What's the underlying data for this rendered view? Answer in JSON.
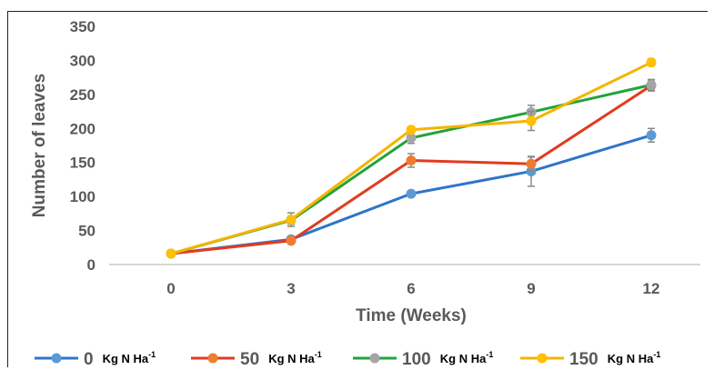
{
  "chart_data": {
    "type": "line",
    "xlabel": "Time (Weeks)",
    "ylabel": "Number of leaves",
    "x": [
      0,
      3,
      6,
      9,
      12
    ],
    "ylim": [
      0,
      350
    ],
    "yticks": [
      0,
      50,
      100,
      150,
      200,
      250,
      300,
      350
    ],
    "grid": false,
    "legend_position": "bottom",
    "series": [
      {
        "name": "0",
        "legend_unit": "Kg N Ha",
        "legend_exp": "-1",
        "color": "#2E75C9",
        "values": [
          16,
          37,
          104,
          137,
          190
        ],
        "errors": [
          0,
          0,
          0,
          22,
          10
        ]
      },
      {
        "name": "50",
        "legend_unit": "Kg N Ha",
        "legend_exp": "-1",
        "color": "#E23B1F",
        "values": [
          16,
          35,
          153,
          148,
          263
        ],
        "errors": [
          0,
          0,
          10,
          10,
          8
        ]
      },
      {
        "name": "100",
        "legend_unit": "Kg N Ha",
        "legend_exp": "-1",
        "color": "#22A33A",
        "values": [
          16,
          65,
          186,
          224,
          264
        ],
        "errors": [
          0,
          6,
          8,
          10,
          8
        ]
      },
      {
        "name": "150",
        "legend_unit": "Kg N Ha",
        "legend_exp": "-1",
        "color": "#F4B400",
        "values": [
          16,
          66,
          198,
          211,
          297
        ],
        "errors": [
          0,
          10,
          4,
          14,
          5
        ]
      }
    ],
    "marker_colors": {
      "0": "#5B9BD5",
      "50": "#ED7D31",
      "100": "#A5A5A5",
      "150": "#FFC000"
    },
    "errorbar_color": "#8a8a8a"
  }
}
